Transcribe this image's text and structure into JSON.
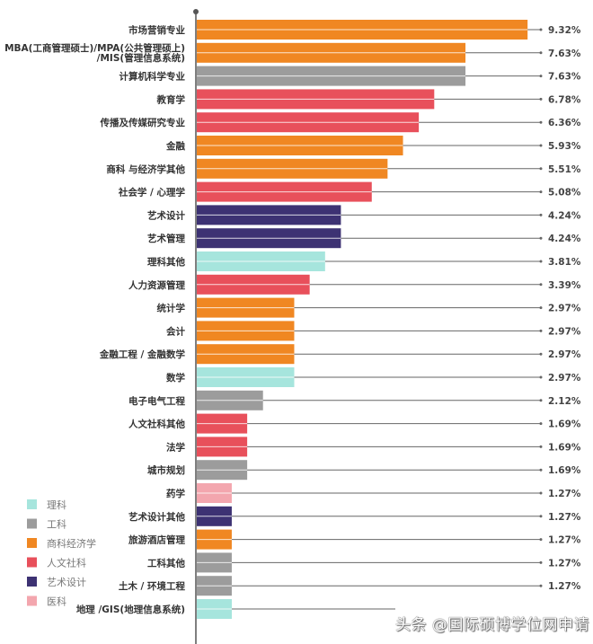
{
  "chart_data": {
    "type": "bar",
    "orientation": "horizontal",
    "categories": [
      "市场营销专业",
      "MBA(工商管理硕士)/MPA(公共管理硕上)/MIS(管理信息系统)",
      "计算机科学专业",
      "教育学",
      "传播及传媒研究专业",
      "金融",
      "商科 与经济学其他",
      "社会学 / 心理学",
      "艺术设计",
      "艺术管理",
      "理科其他",
      "人力资源管理",
      "统计学",
      "会计",
      "金融工程 / 金融数学",
      "数学",
      "电子电气工程",
      "人文社科其他",
      "法学",
      "城市规划",
      "药学",
      "艺术设计其他",
      "旅游酒店管理",
      "工科其他",
      "土木 / 环境工程",
      "地理 /GIS(地理信息系统)"
    ],
    "category_lines": {
      "1": [
        "MBA(工商管理硕士)/MPA(公共管理硕上)",
        "/MIS(管理信息系统)"
      ]
    },
    "values": [
      9.32,
      7.63,
      7.63,
      6.78,
      6.36,
      5.93,
      5.51,
      5.08,
      4.24,
      4.24,
      3.81,
      3.39,
      2.97,
      2.97,
      2.97,
      2.97,
      2.12,
      1.69,
      1.69,
      1.69,
      1.27,
      1.27,
      1.27,
      1.27,
      1.27,
      null
    ],
    "value_labels": [
      "9.32%",
      "7.63%",
      "7.63%",
      "6.78%",
      "6.36%",
      "5.93%",
      "5.51%",
      "5.08%",
      "4.24%",
      "4.24%",
      "3.81%",
      "3.39%",
      "2.97%",
      "2.97%",
      "2.97%",
      "2.97%",
      "2.12%",
      "1.69%",
      "1.69%",
      "1.69%",
      "1.27%",
      "1.27%",
      "1.27%",
      "1.27%",
      "1.27%",
      ""
    ],
    "groups": [
      "商科经济学",
      "商科经济学",
      "工科",
      "人文社科",
      "人文社科",
      "商科经济学",
      "商科经济学",
      "人文社科",
      "艺术设计",
      "艺术设计",
      "理科",
      "人文社科",
      "商科经济学",
      "商科经济学",
      "商科经济学",
      "理科",
      "工科",
      "人文社科",
      "人文社科",
      "工科",
      "医科",
      "艺术设计",
      "商科经济学",
      "工科",
      "工科",
      "理科"
    ],
    "legend": [
      {
        "name": "理科",
        "color": "#a6e5dd"
      },
      {
        "name": "工科",
        "color": "#9c9c9c"
      },
      {
        "name": "商科经济学",
        "color": "#f08722"
      },
      {
        "name": "人文社科",
        "color": "#e8505b"
      },
      {
        "name": "艺术设计",
        "color": "#3d3273"
      },
      {
        "name": "医科",
        "color": "#f3a6ae"
      }
    ],
    "legend_position": "bottom-left",
    "grid": false
  },
  "watermark": "头条 @国际硕博学位网申请"
}
